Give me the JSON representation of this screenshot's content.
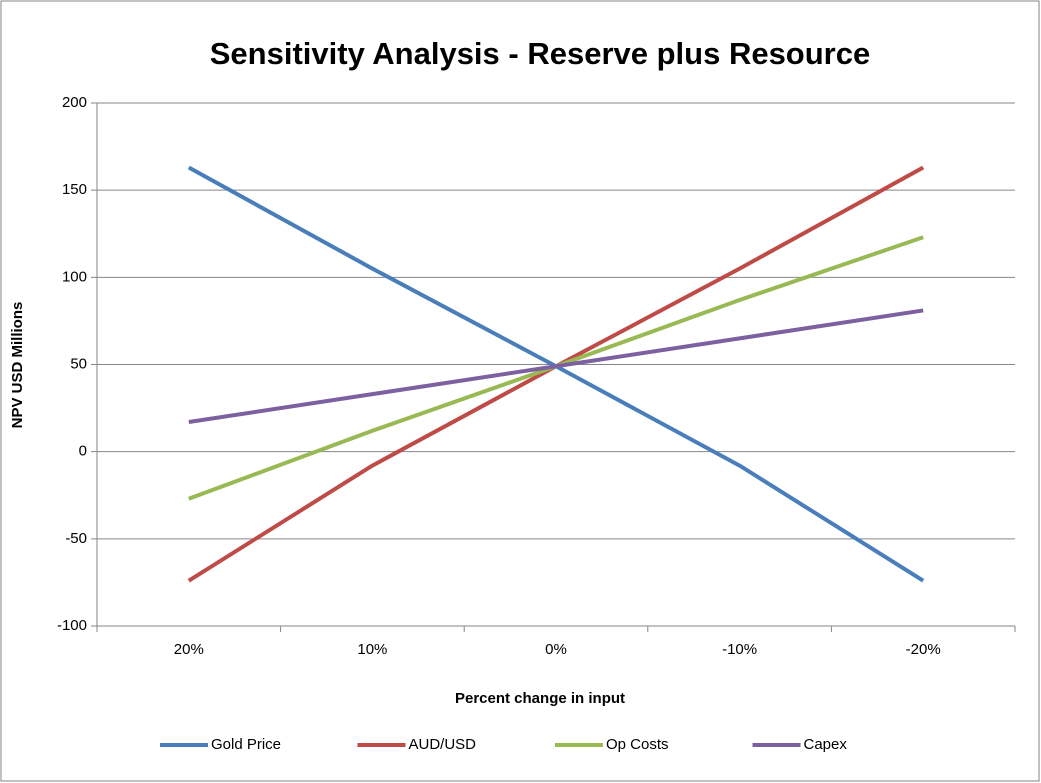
{
  "chart_data": {
    "type": "line",
    "title": "Sensitivity Analysis - Reserve plus Resource",
    "x_label": "Percent change in input",
    "y_label": "NPV USD Millions",
    "categories": [
      "20%",
      "10%",
      "0%",
      "-10%",
      "-20%"
    ],
    "series": [
      {
        "name": "Gold Price",
        "color": "#4a7ebb",
        "values": [
          163,
          105,
          49,
          -8,
          -74
        ]
      },
      {
        "name": "AUD/USD",
        "color": "#be4b48",
        "values": [
          -74,
          -8,
          49,
          105,
          163
        ]
      },
      {
        "name": "Op Costs",
        "color": "#98b954",
        "values": [
          -27,
          12,
          49,
          87,
          123
        ]
      },
      {
        "name": "Capex",
        "color": "#7d60a0",
        "values": [
          17,
          33,
          49,
          65,
          81
        ]
      }
    ],
    "ylim": [
      -100,
      200
    ],
    "yticks": [
      -100,
      -50,
      0,
      50,
      100,
      150,
      200
    ],
    "grid": true,
    "legend": "bottom"
  }
}
